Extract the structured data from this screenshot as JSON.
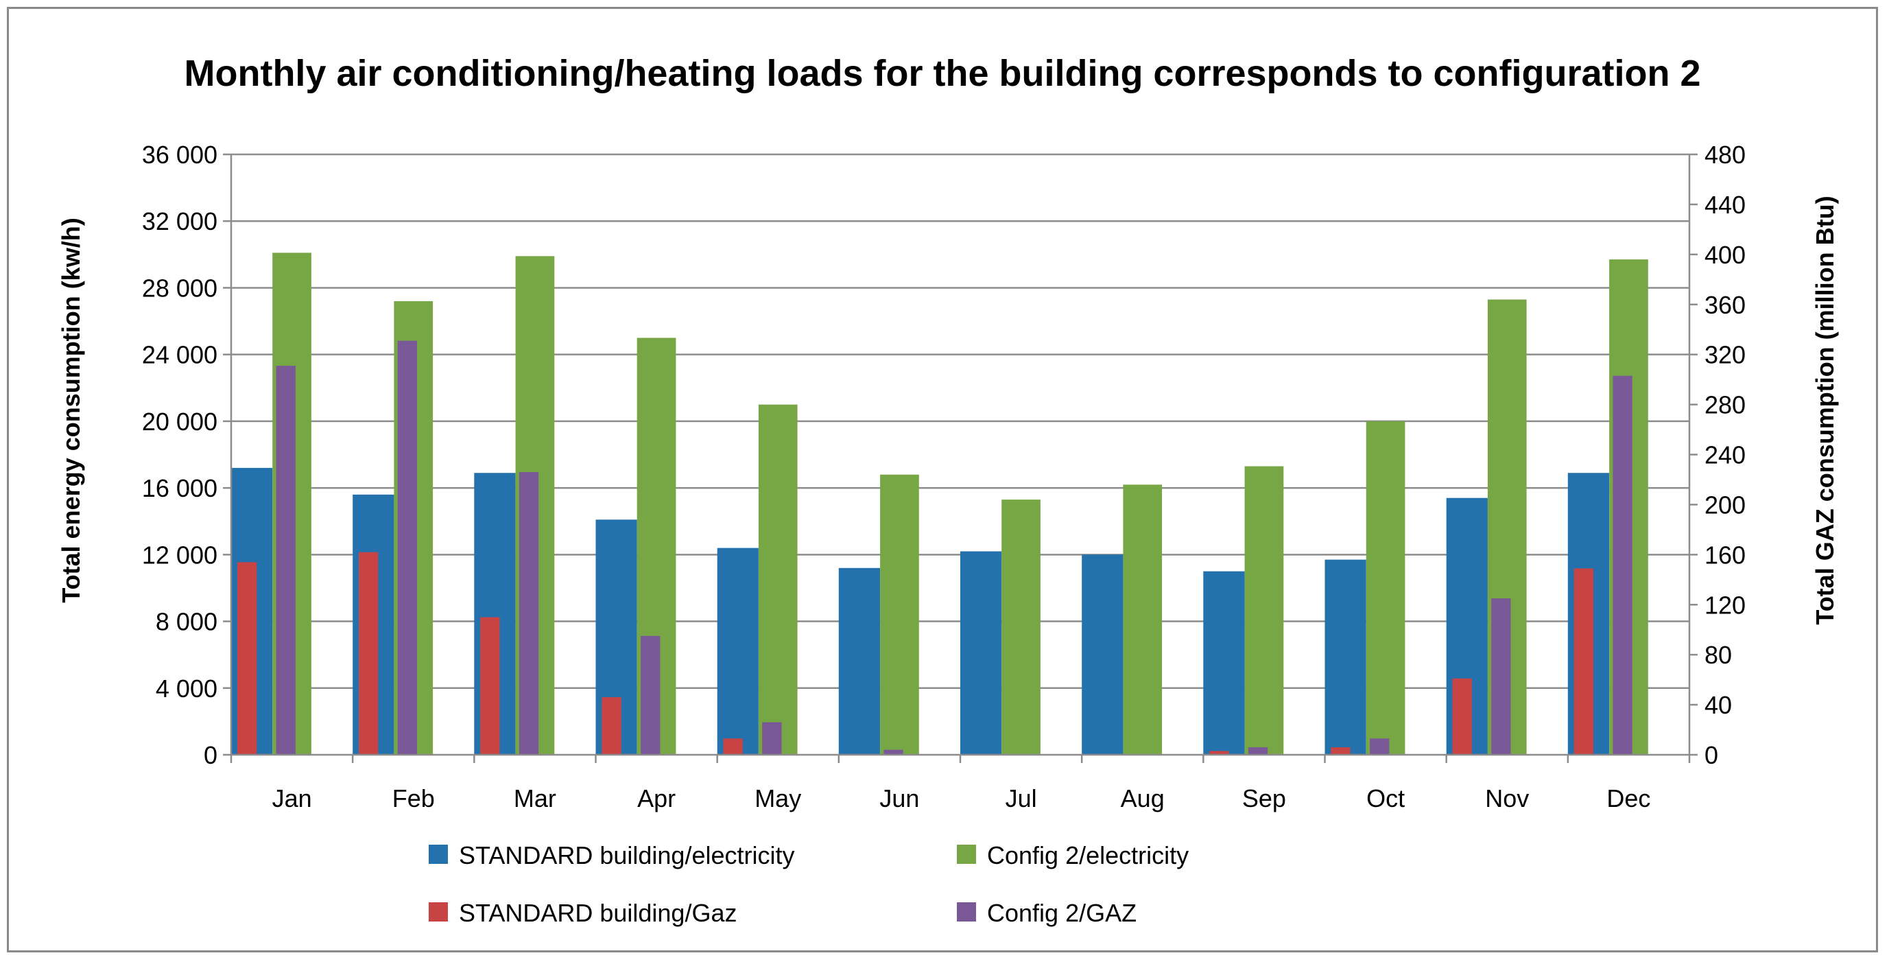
{
  "chart_data": {
    "type": "bar",
    "title": "Monthly air conditioning/heating loads for the building corresponds to configuration 2",
    "xlabel": "",
    "ylabel": "Total energy consumption (kw/h)",
    "y2label": "Total GAZ consumption (million Btu)",
    "ylim": [
      0,
      36000
    ],
    "y2lim": [
      0,
      480
    ],
    "yticks": [
      "0",
      "4 000",
      "8 000",
      "12 000",
      "16 000",
      "20 000",
      "24 000",
      "28 000",
      "32 000",
      "36 000"
    ],
    "y2ticks": [
      "0",
      "40",
      "80",
      "120",
      "160",
      "200",
      "240",
      "280",
      "320",
      "360",
      "400",
      "440",
      "480"
    ],
    "grid": true,
    "legend_position": "bottom",
    "categories": [
      "Jan",
      "Feb",
      "Mar",
      "Apr",
      "May",
      "Jun",
      "Jul",
      "Aug",
      "Sep",
      "Oct",
      "Nov",
      "Dec"
    ],
    "series": [
      {
        "name": "STANDARD building/electricity",
        "axis": "left",
        "color": "#2472ad",
        "values": [
          17200,
          15600,
          16900,
          14100,
          12400,
          11200,
          12200,
          12000,
          11000,
          11700,
          15400,
          16900
        ]
      },
      {
        "name": "Config 2/electricity",
        "axis": "left",
        "color": "#77a745",
        "values": [
          30100,
          27200,
          29900,
          25000,
          21000,
          16800,
          15300,
          16200,
          17300,
          20000,
          27300,
          29700
        ]
      },
      {
        "name": "STANDARD building/Gaz",
        "axis": "right",
        "color": "#c84343",
        "values": [
          154,
          162,
          110,
          46,
          13,
          0,
          0,
          0,
          3,
          6,
          61,
          149
        ]
      },
      {
        "name": "Config 2/GAZ",
        "axis": "right",
        "color": "#7a5797",
        "values": [
          311,
          331,
          226,
          95,
          26,
          4,
          0,
          0,
          6,
          13,
          125,
          303
        ]
      }
    ]
  }
}
